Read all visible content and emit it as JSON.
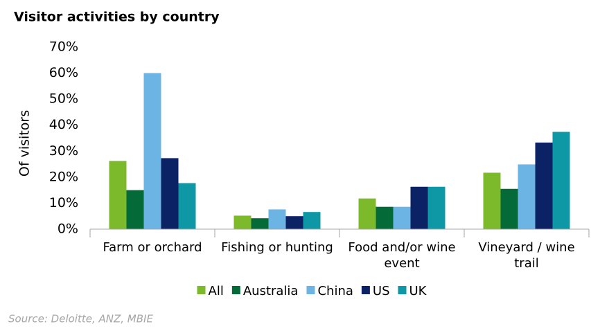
{
  "chart_data": {
    "type": "bar",
    "title": "Visitor activities by country",
    "y_label": "Of visitors",
    "source": "Source: Deloitte, ANZ, MBIE",
    "categories": [
      "Farm or orchard",
      "Fishing or hunting",
      "Food and/or wine event",
      "Vineyard / wine trail"
    ],
    "series": [
      {
        "name": "All",
        "color": "#7cba2c",
        "values": [
          26.2,
          5.2,
          11.8,
          21.7
        ]
      },
      {
        "name": "Australia",
        "color": "#046a38",
        "values": [
          15,
          4.2,
          8.6,
          15.5
        ]
      },
      {
        "name": "China",
        "color": "#6cb4e4",
        "values": [
          60,
          7.6,
          8.6,
          24.9
        ]
      },
      {
        "name": "US",
        "color": "#0b2265",
        "values": [
          27.3,
          5,
          16.3,
          33.3
        ]
      },
      {
        "name": "UK",
        "color": "#0e97a5",
        "values": [
          17.7,
          6.6,
          16.3,
          37.4
        ]
      }
    ],
    "ylim": [
      0,
      70
    ],
    "yticks": [
      {
        "value": 0,
        "label": "0%"
      },
      {
        "value": 10,
        "label": "10%"
      },
      {
        "value": 20,
        "label": "20%"
      },
      {
        "value": 30,
        "label": "30%"
      },
      {
        "value": 40,
        "label": "40%"
      },
      {
        "value": 50,
        "label": "50%"
      },
      {
        "value": 60,
        "label": "60%"
      },
      {
        "value": 70,
        "label": "70%"
      }
    ],
    "grid": false,
    "legend": "bottom"
  }
}
